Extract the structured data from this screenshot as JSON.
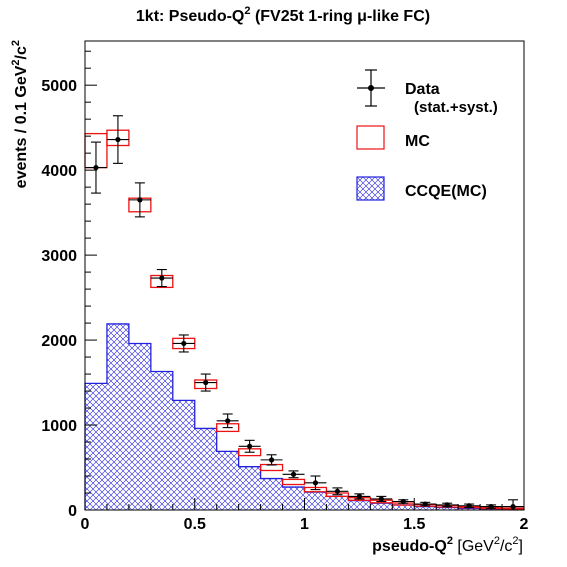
{
  "chart_data": {
    "type": "histogram",
    "title": {
      "pre": "1kt: Pseudo-Q",
      "sup": "2",
      "post": " (FV25t 1-ring μ-like FC)"
    },
    "xlabel": {
      "pre": "pseudo-Q",
      "sup1": "2",
      "mid": " [GeV",
      "sup2": "2",
      "mid2": "/c",
      "sup3": "2",
      "post": "]"
    },
    "ylabel": {
      "pre": "events / 0.1 GeV",
      "sup1": "2",
      "mid": "/c",
      "sup2": "2"
    },
    "xlim": [
      0,
      2
    ],
    "ylim": [
      0,
      5520
    ],
    "x_ticks": [
      0,
      0.5,
      1,
      1.5,
      2
    ],
    "x_tick_labels": [
      "0",
      "0.5",
      "1",
      "1.5",
      "2"
    ],
    "y_ticks": [
      0,
      1000,
      2000,
      3000,
      4000,
      5000
    ],
    "y_tick_labels": [
      "0",
      "1000",
      "2000",
      "3000",
      "4000",
      "5000"
    ],
    "bin_edges": [
      0,
      0.1,
      0.2,
      0.3,
      0.4,
      0.5,
      0.6,
      0.7,
      0.8,
      0.9,
      1.0,
      1.1,
      1.2,
      1.3,
      1.4,
      1.5,
      1.6,
      1.7,
      1.8,
      1.9,
      2.0
    ],
    "series": [
      {
        "name": "Data",
        "sublabel": "(stat.+syst.)",
        "kind": "points",
        "color": "#000000",
        "x": [
          0.05,
          0.15,
          0.25,
          0.35,
          0.45,
          0.55,
          0.65,
          0.75,
          0.85,
          0.95,
          1.05,
          1.15,
          1.25,
          1.35,
          1.45,
          1.55,
          1.65,
          1.75,
          1.85,
          1.95
        ],
        "values": [
          4030,
          4360,
          3650,
          2730,
          1960,
          1500,
          1050,
          750,
          590,
          420,
          320,
          220,
          160,
          130,
          100,
          70,
          60,
          50,
          40,
          40
        ],
        "errors": [
          300,
          280,
          200,
          100,
          100,
          100,
          80,
          70,
          60,
          40,
          80,
          40,
          30,
          30,
          20,
          20,
          20,
          20,
          20,
          80
        ]
      },
      {
        "name": "MC",
        "kind": "box",
        "color": "#ee1111",
        "values": [
          4230,
          4380,
          3590,
          2690,
          1960,
          1480,
          970,
          680,
          500,
          330,
          240,
          180,
          130,
          100,
          70,
          55,
          45,
          35,
          25,
          15
        ],
        "errors": [
          200,
          90,
          80,
          70,
          60,
          50,
          45,
          40,
          35,
          30,
          25,
          20,
          15,
          15,
          12,
          10,
          10,
          8,
          8,
          8
        ]
      },
      {
        "name": "CCQE(MC)",
        "kind": "hatched",
        "color": "#2222dd",
        "values": [
          1490,
          2190,
          1960,
          1630,
          1290,
          960,
          690,
          510,
          370,
          270,
          210,
          160,
          110,
          80,
          60,
          40,
          30,
          20,
          15,
          10
        ]
      }
    ]
  }
}
